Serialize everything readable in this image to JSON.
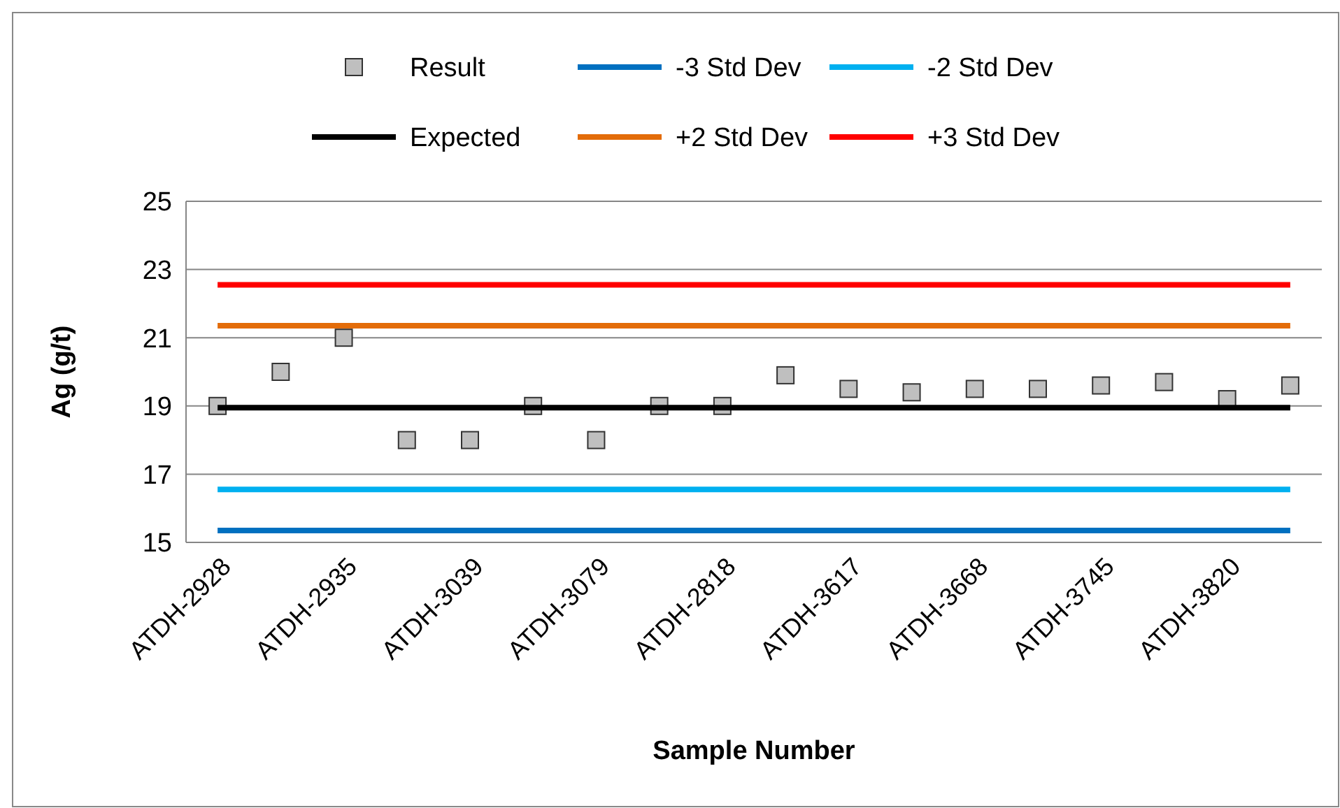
{
  "chart_data": {
    "type": "line",
    "xlabel": "Sample Number",
    "ylabel": "Ag (g/t)",
    "categories": [
      "ATDH-2928",
      null,
      "ATDH-2935",
      null,
      "ATDH-3039",
      null,
      "ATDH-3079",
      null,
      "ATDH-2818",
      null,
      "ATDH-3617",
      null,
      "ATDH-3668",
      null,
      "ATDH-3745",
      null,
      "ATDH-3820",
      null
    ],
    "ylim": [
      15,
      25
    ],
    "yticks": [
      15,
      17,
      19,
      21,
      23,
      25
    ],
    "grid": "y",
    "legend": "top",
    "series": [
      {
        "name": "Result",
        "type": "scatter",
        "marker": "square",
        "color": "#bfbfbf",
        "values": [
          19,
          20,
          21,
          18,
          18,
          19,
          18,
          19,
          19,
          19.9,
          19.5,
          19.4,
          19.5,
          19.5,
          19.6,
          19.7,
          19.2,
          19.6
        ]
      },
      {
        "name": "-3 Std Dev",
        "color": "#0070c0",
        "marker": "none",
        "values": [
          15.35,
          15.35,
          15.35,
          15.35,
          15.35,
          15.35,
          15.35,
          15.35,
          15.35,
          15.35,
          15.35,
          15.35,
          15.35,
          15.35,
          15.35,
          15.35,
          15.35,
          15.35
        ]
      },
      {
        "name": "-2 Std Dev",
        "color": "#00b0f0",
        "marker": "none",
        "values": [
          16.55,
          16.55,
          16.55,
          16.55,
          16.55,
          16.55,
          16.55,
          16.55,
          16.55,
          16.55,
          16.55,
          16.55,
          16.55,
          16.55,
          16.55,
          16.55,
          16.55,
          16.55
        ]
      },
      {
        "name": "Expected",
        "color": "#000000",
        "marker": "none",
        "values": [
          18.95,
          18.95,
          18.95,
          18.95,
          18.95,
          18.95,
          18.95,
          18.95,
          18.95,
          18.95,
          18.95,
          18.95,
          18.95,
          18.95,
          18.95,
          18.95,
          18.95,
          18.95
        ]
      },
      {
        "name": "+2 Std Dev",
        "color": "#e36c09",
        "marker": "none",
        "values": [
          21.35,
          21.35,
          21.35,
          21.35,
          21.35,
          21.35,
          21.35,
          21.35,
          21.35,
          21.35,
          21.35,
          21.35,
          21.35,
          21.35,
          21.35,
          21.35,
          21.35,
          21.35
        ]
      },
      {
        "name": "+3 Std Dev",
        "color": "#ff0000",
        "marker": "none",
        "values": [
          22.55,
          22.55,
          22.55,
          22.55,
          22.55,
          22.55,
          22.55,
          22.55,
          22.55,
          22.55,
          22.55,
          22.55,
          22.55,
          22.55,
          22.55,
          22.55,
          22.55,
          22.55
        ]
      }
    ]
  }
}
